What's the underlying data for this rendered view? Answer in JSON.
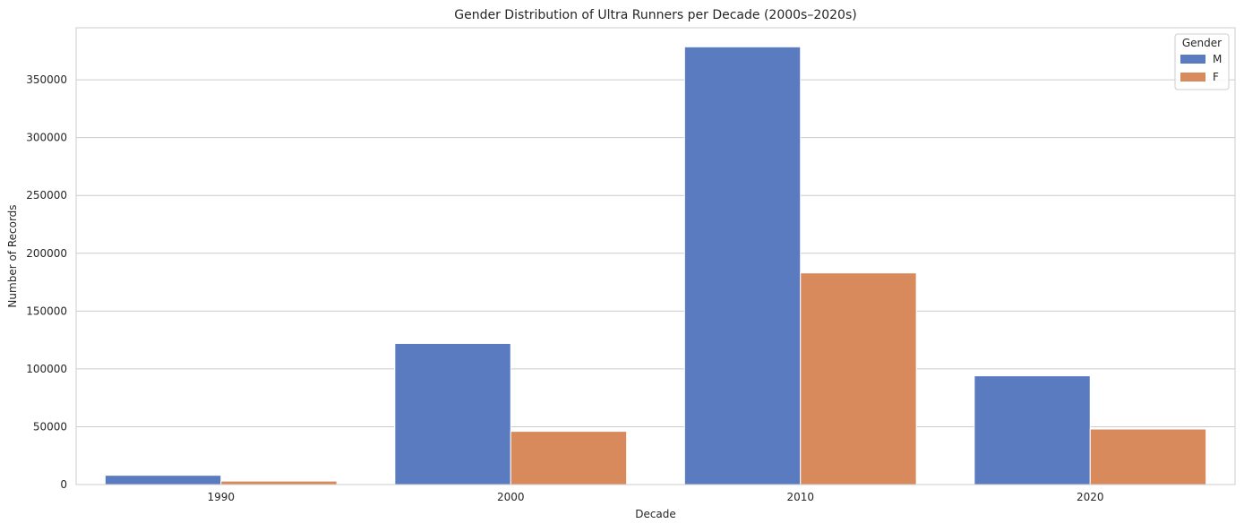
{
  "chart_data": {
    "type": "bar",
    "title": "Gender Distribution of Ultra Runners per Decade (2000s–2020s)",
    "xlabel": "Decade",
    "ylabel": "Number of Records",
    "categories": [
      "1990",
      "2000",
      "2010",
      "2020"
    ],
    "series": [
      {
        "name": "M",
        "color": "#5a7bbf",
        "values": [
          8000,
          122000,
          378500,
          94000
        ]
      },
      {
        "name": "F",
        "color": "#d88a5c",
        "values": [
          3000,
          46000,
          183000,
          48000
        ]
      }
    ],
    "ylim": [
      0,
      395000
    ],
    "yticks": [
      0,
      50000,
      100000,
      150000,
      200000,
      250000,
      300000,
      350000
    ],
    "ytick_labels": [
      "0",
      "50000",
      "100000",
      "150000",
      "200000",
      "250000",
      "300000",
      "350000"
    ],
    "grid": true,
    "legend": {
      "title": "Gender",
      "placement": "top-right"
    }
  }
}
